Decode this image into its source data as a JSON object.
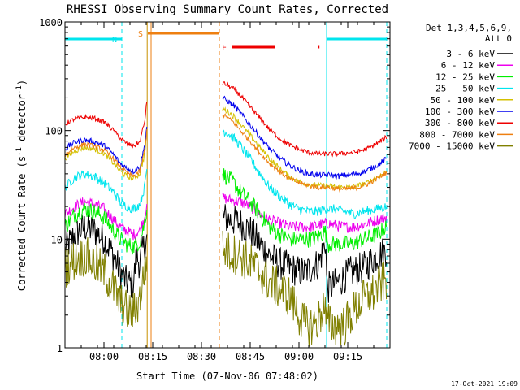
{
  "chart_data": {
    "type": "line",
    "title": "RHESSI Observing Summary Count Rates, Corrected",
    "ylabel": "Corrected Count Rate (s⁻¹ detector⁻¹)",
    "xlabel": "Start Time (07-Nov-06 07:48:02)",
    "yscale": "log",
    "ylim": [
      1,
      1000
    ],
    "xlim_minutes": [
      0,
      100
    ],
    "x_ticks": [
      {
        "min": 12,
        "label": "08:00"
      },
      {
        "min": 27,
        "label": "08:15"
      },
      {
        "min": 42,
        "label": "08:30"
      },
      {
        "min": 57,
        "label": "08:45"
      },
      {
        "min": 72,
        "label": "09:00"
      },
      {
        "min": 87,
        "label": "09:15"
      }
    ],
    "y_ticks": [
      {
        "v": 1,
        "label": "1"
      },
      {
        "v": 10,
        "label": "10"
      },
      {
        "v": 100,
        "label": "100"
      },
      {
        "v": 1000,
        "label": "1000"
      }
    ],
    "legend_header": [
      "Det 1,3,4,5,6,9,",
      "Att 0"
    ],
    "legend_position": "right",
    "footer_date": "17-Oct-2021 19:09",
    "flag_bars": [
      {
        "label": "N",
        "color": "#00e5ee",
        "segments": [
          [
            0,
            17.5
          ],
          [
            80.5,
            99
          ]
        ]
      },
      {
        "label": "S",
        "color": "#ee7f10",
        "segments": [
          [
            25.5,
            47.5
          ]
        ]
      },
      {
        "label": "F",
        "color": "#ee0000",
        "segments": [
          [
            51.5,
            64.5
          ],
          [
            77.8,
            78.3
          ]
        ]
      }
    ],
    "vlines": [
      {
        "min": 17.5,
        "color": "#00e5ee",
        "style": "dashed"
      },
      {
        "min": 25.3,
        "color": "#c89000",
        "style": "solid"
      },
      {
        "min": 26.5,
        "color": "#ee7f10",
        "style": "solid"
      },
      {
        "min": 47.5,
        "color": "#ee7f10",
        "style": "dashed"
      },
      {
        "min": 80.5,
        "color": "#00e5ee",
        "style": "solid"
      },
      {
        "min": 99,
        "color": "#00e5ee",
        "style": "dashed"
      }
    ],
    "gap_minutes": [
      25.3,
      48.5
    ],
    "series": [
      {
        "name": "3 - 6 keV",
        "color": "#000000",
        "noise": 0.35,
        "pts": [
          [
            0,
            8
          ],
          [
            3,
            11
          ],
          [
            6,
            13
          ],
          [
            9,
            12
          ],
          [
            12,
            10
          ],
          [
            15,
            7
          ],
          [
            17,
            5
          ],
          [
            19,
            4
          ],
          [
            21,
            3.8
          ],
          [
            22,
            7
          ],
          [
            23,
            6
          ],
          [
            24.5,
            9
          ],
          [
            25.2,
            10
          ],
          [
            48.5,
            16
          ],
          [
            51,
            15
          ],
          [
            54,
            14
          ],
          [
            57,
            12
          ],
          [
            60,
            9
          ],
          [
            63,
            7
          ],
          [
            66,
            6
          ],
          [
            69,
            5.5
          ],
          [
            72,
            5
          ],
          [
            74,
            5
          ],
          [
            76,
            5.5
          ],
          [
            78,
            6
          ],
          [
            79.5,
            8
          ],
          [
            80.2,
            10
          ],
          [
            80.6,
            3.5
          ],
          [
            84,
            4
          ],
          [
            88,
            5
          ],
          [
            92,
            5.5
          ],
          [
            96,
            7
          ],
          [
            99,
            8
          ]
        ]
      },
      {
        "name": "6 - 12 keV",
        "color": "#ee00ee",
        "noise": 0.12,
        "pts": [
          [
            0,
            17
          ],
          [
            3,
            20
          ],
          [
            6,
            22
          ],
          [
            9,
            21
          ],
          [
            12,
            19
          ],
          [
            15,
            15
          ],
          [
            17,
            13
          ],
          [
            19,
            12
          ],
          [
            21,
            11
          ],
          [
            23,
            12
          ],
          [
            24.5,
            16
          ],
          [
            25.2,
            22
          ],
          [
            48.5,
            24
          ],
          [
            51,
            23
          ],
          [
            54,
            22
          ],
          [
            57,
            20
          ],
          [
            60,
            17
          ],
          [
            63,
            15
          ],
          [
            66,
            14
          ],
          [
            69,
            13
          ],
          [
            72,
            13
          ],
          [
            75,
            13
          ],
          [
            78,
            13.5
          ],
          [
            81,
            14
          ],
          [
            85,
            13
          ],
          [
            89,
            13
          ],
          [
            93,
            14
          ],
          [
            96,
            15
          ],
          [
            99,
            16
          ]
        ]
      },
      {
        "name": "12 - 25 keV",
        "color": "#00ee00",
        "noise": 0.18,
        "pts": [
          [
            0,
            13
          ],
          [
            3,
            17
          ],
          [
            6,
            19
          ],
          [
            9,
            18
          ],
          [
            12,
            16
          ],
          [
            15,
            12
          ],
          [
            17,
            10
          ],
          [
            19,
            9
          ],
          [
            21,
            8.5
          ],
          [
            23,
            9.5
          ],
          [
            24.5,
            14
          ],
          [
            25.2,
            20
          ],
          [
            48.5,
            40
          ],
          [
            50,
            37
          ],
          [
            52,
            33
          ],
          [
            54,
            27
          ],
          [
            57,
            22
          ],
          [
            60,
            17
          ],
          [
            63,
            13
          ],
          [
            66,
            11
          ],
          [
            69,
            10
          ],
          [
            72,
            10
          ],
          [
            75,
            10
          ],
          [
            78,
            10.5
          ],
          [
            80,
            12
          ],
          [
            81,
            9
          ],
          [
            84,
            9
          ],
          [
            88,
            9
          ],
          [
            92,
            10
          ],
          [
            96,
            11
          ],
          [
            99,
            13
          ]
        ]
      },
      {
        "name": "25 - 50 keV",
        "color": "#00e5ee",
        "noise": 0.1,
        "pts": [
          [
            0,
            30
          ],
          [
            3,
            37
          ],
          [
            6,
            40
          ],
          [
            9,
            38
          ],
          [
            12,
            33
          ],
          [
            15,
            27
          ],
          [
            17,
            22
          ],
          [
            19,
            20
          ],
          [
            21,
            19
          ],
          [
            23,
            21
          ],
          [
            24.5,
            30
          ],
          [
            25.2,
            45
          ],
          [
            48.5,
            100
          ],
          [
            50,
            95
          ],
          [
            52,
            85
          ],
          [
            54,
            72
          ],
          [
            57,
            55
          ],
          [
            60,
            40
          ],
          [
            63,
            30
          ],
          [
            66,
            25
          ],
          [
            69,
            21
          ],
          [
            72,
            19
          ],
          [
            75,
            18
          ],
          [
            78,
            18
          ],
          [
            80,
            19
          ],
          [
            83,
            19
          ],
          [
            86,
            18
          ],
          [
            89,
            17
          ],
          [
            92,
            18
          ],
          [
            96,
            19
          ],
          [
            99,
            20
          ]
        ]
      },
      {
        "name": "50 - 100 keV",
        "color": "#d4c000",
        "noise": 0.06,
        "pts": [
          [
            0,
            55
          ],
          [
            3,
            65
          ],
          [
            6,
            70
          ],
          [
            9,
            68
          ],
          [
            12,
            62
          ],
          [
            15,
            50
          ],
          [
            17,
            42
          ],
          [
            19,
            38
          ],
          [
            21,
            36
          ],
          [
            23,
            40
          ],
          [
            24.5,
            60
          ],
          [
            25.2,
            95
          ],
          [
            48.5,
            160
          ],
          [
            50,
            150
          ],
          [
            52,
            135
          ],
          [
            54,
            115
          ],
          [
            57,
            90
          ],
          [
            60,
            70
          ],
          [
            63,
            55
          ],
          [
            66,
            45
          ],
          [
            69,
            38
          ],
          [
            72,
            34
          ],
          [
            75,
            32
          ],
          [
            78,
            31
          ],
          [
            81,
            31
          ],
          [
            84,
            30
          ],
          [
            87,
            30
          ],
          [
            90,
            31
          ],
          [
            93,
            33
          ],
          [
            96,
            37
          ],
          [
            99,
            42
          ]
        ]
      },
      {
        "name": "100 - 300 keV",
        "color": "#0000ee",
        "noise": 0.06,
        "pts": [
          [
            0,
            68
          ],
          [
            3,
            78
          ],
          [
            6,
            82
          ],
          [
            9,
            79
          ],
          [
            12,
            73
          ],
          [
            15,
            60
          ],
          [
            17,
            50
          ],
          [
            19,
            45
          ],
          [
            21,
            42
          ],
          [
            23,
            46
          ],
          [
            24.5,
            72
          ],
          [
            25.2,
            110
          ],
          [
            48.5,
            200
          ],
          [
            50,
            188
          ],
          [
            52,
            170
          ],
          [
            54,
            145
          ],
          [
            57,
            112
          ],
          [
            60,
            87
          ],
          [
            63,
            68
          ],
          [
            66,
            56
          ],
          [
            69,
            48
          ],
          [
            72,
            43
          ],
          [
            75,
            40
          ],
          [
            78,
            39
          ],
          [
            81,
            39
          ],
          [
            84,
            38
          ],
          [
            87,
            39
          ],
          [
            90,
            40
          ],
          [
            93,
            43
          ],
          [
            96,
            48
          ],
          [
            99,
            55
          ]
        ]
      },
      {
        "name": "300 - 800 keV",
        "color": "#ee0000",
        "noise": 0.05,
        "pts": [
          [
            0,
            115
          ],
          [
            3,
            128
          ],
          [
            6,
            133
          ],
          [
            9,
            130
          ],
          [
            12,
            120
          ],
          [
            15,
            100
          ],
          [
            17,
            85
          ],
          [
            19,
            76
          ],
          [
            21,
            72
          ],
          [
            23,
            78
          ],
          [
            24.5,
            120
          ],
          [
            25.2,
            185
          ],
          [
            48.5,
            275
          ],
          [
            50,
            262
          ],
          [
            52,
            240
          ],
          [
            54,
            210
          ],
          [
            57,
            165
          ],
          [
            60,
            130
          ],
          [
            63,
            102
          ],
          [
            66,
            85
          ],
          [
            69,
            74
          ],
          [
            72,
            67
          ],
          [
            75,
            63
          ],
          [
            78,
            61
          ],
          [
            81,
            61
          ],
          [
            84,
            61
          ],
          [
            87,
            62
          ],
          [
            90,
            64
          ],
          [
            93,
            68
          ],
          [
            96,
            76
          ],
          [
            99,
            88
          ]
        ]
      },
      {
        "name": "800 - 7000 keV",
        "color": "#ee7f10",
        "noise": 0.05,
        "pts": [
          [
            0,
            60
          ],
          [
            3,
            70
          ],
          [
            6,
            75
          ],
          [
            9,
            72
          ],
          [
            12,
            66
          ],
          [
            15,
            55
          ],
          [
            17,
            46
          ],
          [
            19,
            41
          ],
          [
            21,
            38
          ],
          [
            23,
            42
          ],
          [
            24.5,
            65
          ],
          [
            25.2,
            100
          ],
          [
            48.5,
            140
          ],
          [
            50,
            132
          ],
          [
            52,
            118
          ],
          [
            54,
            100
          ],
          [
            57,
            80
          ],
          [
            60,
            62
          ],
          [
            63,
            50
          ],
          [
            66,
            42
          ],
          [
            69,
            36
          ],
          [
            72,
            33
          ],
          [
            75,
            31
          ],
          [
            78,
            30
          ],
          [
            81,
            30
          ],
          [
            84,
            29
          ],
          [
            87,
            29
          ],
          [
            90,
            30
          ],
          [
            93,
            32
          ],
          [
            96,
            36
          ],
          [
            99,
            41
          ]
        ]
      },
      {
        "name": "7000 - 15000 keV",
        "color": "#808000",
        "noise": 0.45,
        "pts": [
          [
            0,
            5.5
          ],
          [
            3,
            6.5
          ],
          [
            6,
            7
          ],
          [
            9,
            6
          ],
          [
            12,
            5
          ],
          [
            15,
            3.5
          ],
          [
            17,
            2.6
          ],
          [
            19,
            2.2
          ],
          [
            21,
            2.1
          ],
          [
            23,
            2.8
          ],
          [
            24.5,
            5
          ],
          [
            25.2,
            7
          ],
          [
            48.5,
            8
          ],
          [
            51,
            7.5
          ],
          [
            54,
            7
          ],
          [
            57,
            6
          ],
          [
            60,
            5
          ],
          [
            63,
            4
          ],
          [
            66,
            3.5
          ],
          [
            69,
            3
          ],
          [
            72,
            2
          ],
          [
            74,
            1.6
          ],
          [
            76,
            1.6
          ],
          [
            78,
            1.8
          ],
          [
            79.8,
            2.5
          ],
          [
            80.5,
            1.7
          ],
          [
            83,
            1.6
          ],
          [
            86,
            1.6
          ],
          [
            89,
            2.2
          ],
          [
            92,
            2.8
          ],
          [
            95,
            3.2
          ],
          [
            97,
            3.8
          ],
          [
            99,
            4.2
          ]
        ]
      }
    ]
  }
}
